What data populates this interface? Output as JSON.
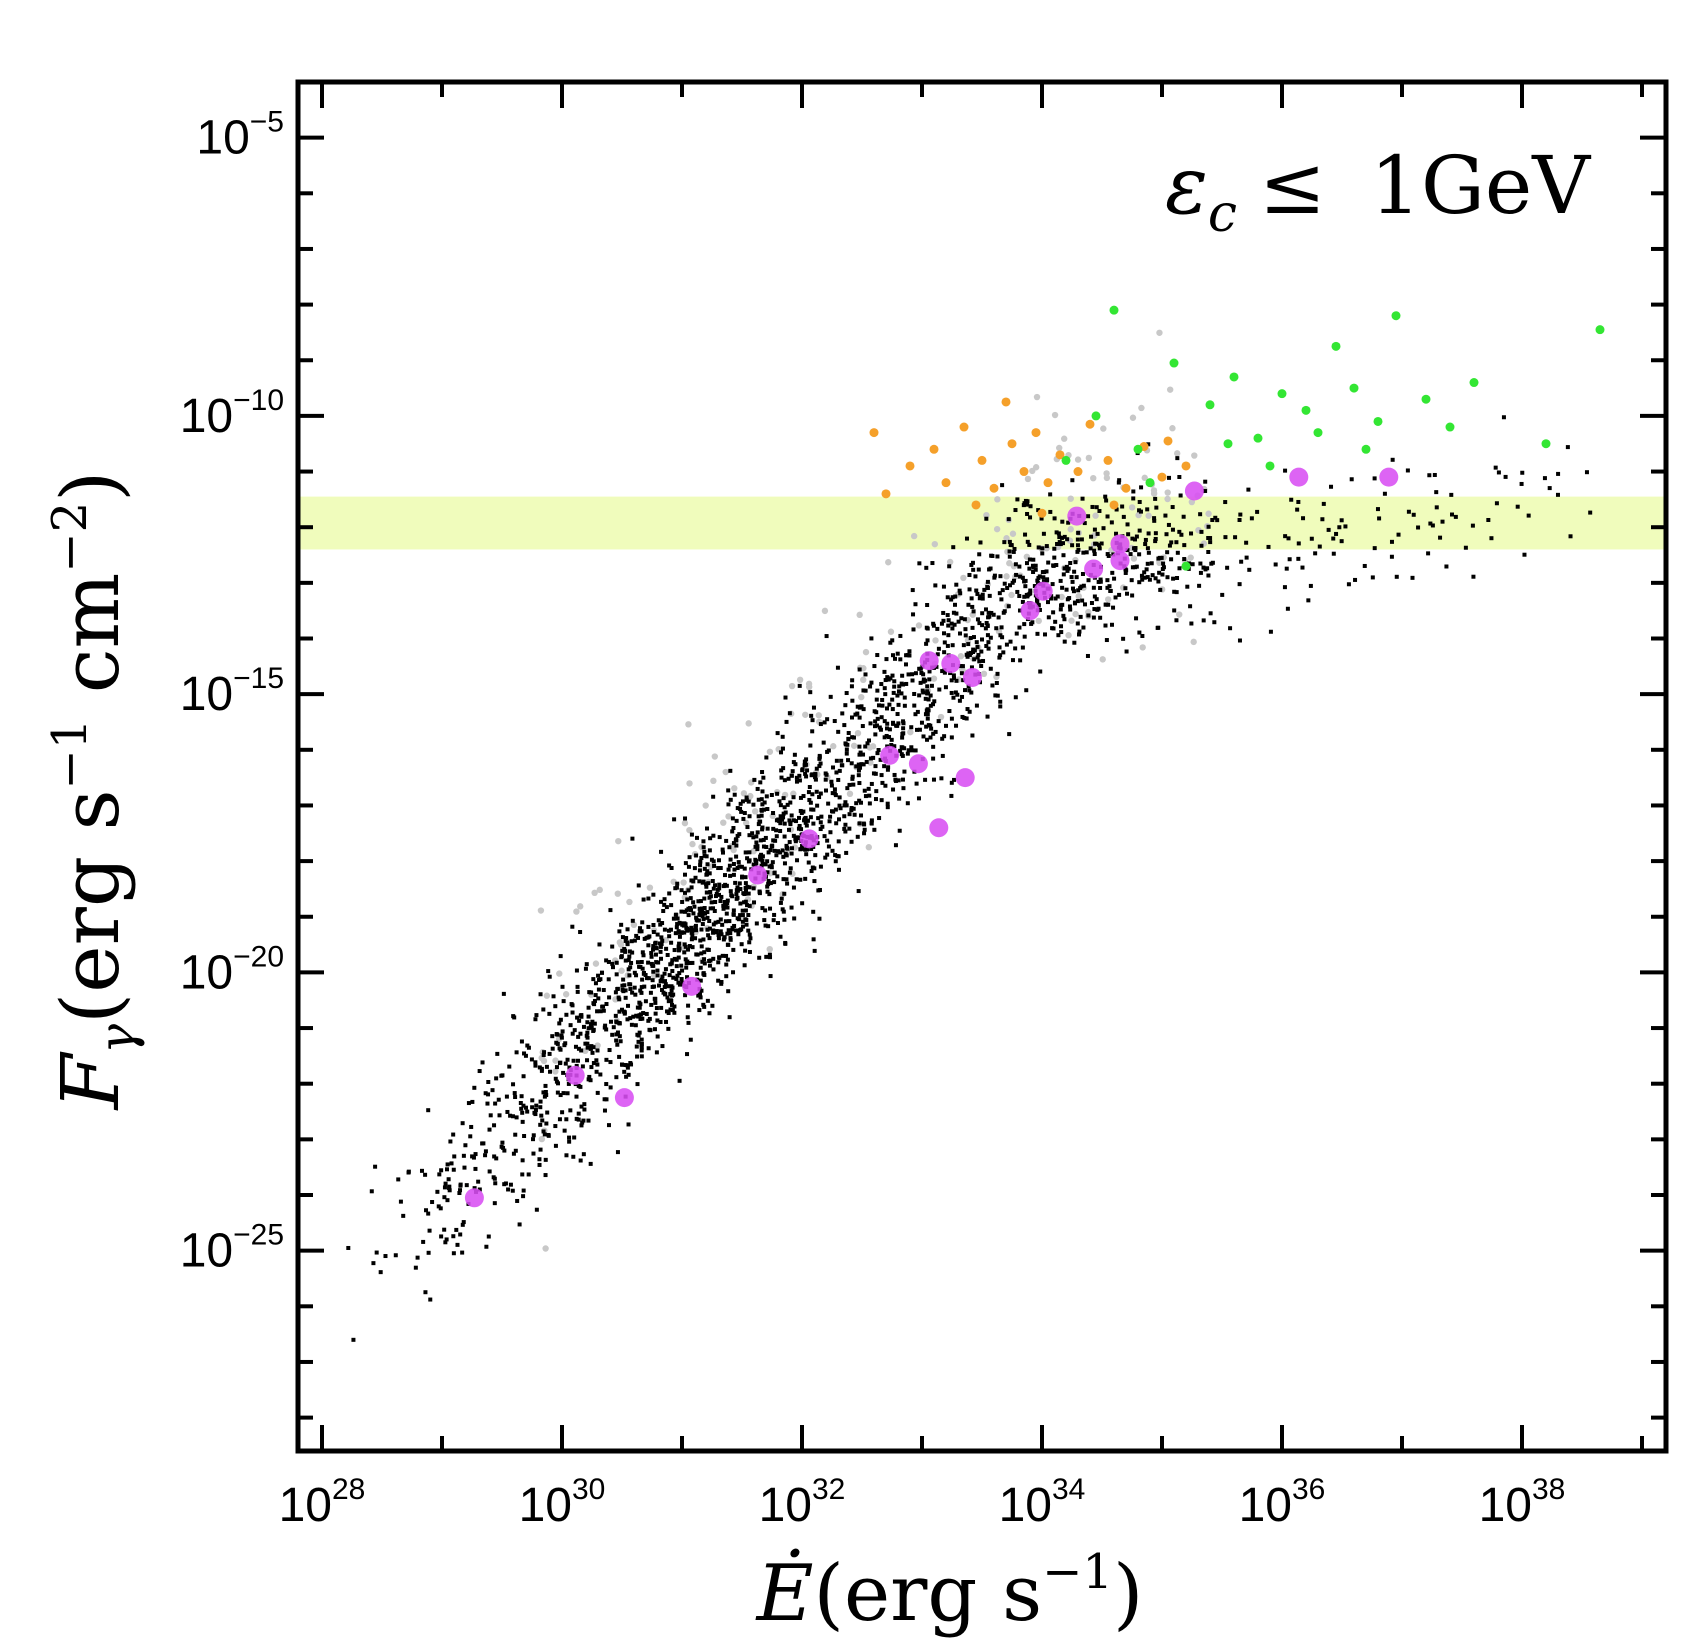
{
  "chart_data": {
    "type": "scatter",
    "title": "",
    "annotation": {
      "epsilon": "ε",
      "sub": "c",
      "relation": "≤",
      "value": "1GeV"
    },
    "xlabel": {
      "symbol": "Ė",
      "unit_open": "(erg s",
      "exp": "−1",
      "unit_close": ")"
    },
    "ylabel": {
      "symbol": "F",
      "sub": "γ",
      "unit_open": "(erg s",
      "exp1": "−1",
      "mid": " cm",
      "exp2": "−2",
      "unit_close": ")"
    },
    "x_scale": "log10",
    "y_scale": "log10",
    "xlim_log10": [
      27.8,
      39.2
    ],
    "ylim_log10": [
      -28.6,
      -4.0
    ],
    "x_ticks": [
      {
        "log": 28,
        "base": "10",
        "exp": "28"
      },
      {
        "log": 30,
        "base": "10",
        "exp": "30"
      },
      {
        "log": 32,
        "base": "10",
        "exp": "32"
      },
      {
        "log": 34,
        "base": "10",
        "exp": "34"
      },
      {
        "log": 36,
        "base": "10",
        "exp": "36"
      },
      {
        "log": 38,
        "base": "10",
        "exp": "38"
      }
    ],
    "y_ticks": [
      {
        "log": -5,
        "base": "10",
        "exp": "−5"
      },
      {
        "log": -10,
        "base": "10",
        "exp": "−10"
      },
      {
        "log": -15,
        "base": "10",
        "exp": "−15"
      },
      {
        "log": -20,
        "base": "10",
        "exp": "−20"
      },
      {
        "log": -25,
        "base": "10",
        "exp": "−25"
      }
    ],
    "band": {
      "label": "sensitivity band",
      "y_log_range": [
        -12.4,
        -11.45
      ],
      "color": "#f0fcbc"
    },
    "colors": {
      "black": "#000000",
      "gray": "#c8c8c8",
      "orange": "#f5a02a",
      "green": "#33e633",
      "magenta": "#d84ef2"
    },
    "series": [
      {
        "name": "magenta",
        "points": [
          [
            29.27,
            -24.05
          ],
          [
            30.11,
            -21.85
          ],
          [
            30.52,
            -22.25
          ],
          [
            31.08,
            -20.25
          ],
          [
            31.63,
            -18.25
          ],
          [
            32.06,
            -17.6
          ],
          [
            32.73,
            -16.1
          ],
          [
            32.97,
            -16.25
          ],
          [
            33.14,
            -17.4
          ],
          [
            33.36,
            -16.5
          ],
          [
            33.06,
            -14.4
          ],
          [
            33.24,
            -14.45
          ],
          [
            33.42,
            -14.7
          ],
          [
            33.9,
            -13.5
          ],
          [
            34.01,
            -13.15
          ],
          [
            34.29,
            -11.8
          ],
          [
            34.43,
            -12.75
          ],
          [
            34.65,
            -12.3
          ],
          [
            34.65,
            -12.6
          ],
          [
            35.27,
            -11.35
          ],
          [
            36.14,
            -11.1
          ],
          [
            36.89,
            -11.1
          ]
        ]
      },
      {
        "name": "green",
        "points": [
          [
            34.2,
            -10.8
          ],
          [
            34.6,
            -8.1
          ],
          [
            34.8,
            -10.6
          ],
          [
            35.1,
            -9.05
          ],
          [
            35.4,
            -9.8
          ],
          [
            35.6,
            -9.3
          ],
          [
            35.8,
            -10.4
          ],
          [
            36.0,
            -9.6
          ],
          [
            36.2,
            -9.9
          ],
          [
            36.45,
            -8.75
          ],
          [
            36.6,
            -9.5
          ],
          [
            36.8,
            -10.1
          ],
          [
            36.95,
            -8.2
          ],
          [
            37.2,
            -9.7
          ],
          [
            37.4,
            -10.2
          ],
          [
            37.6,
            -9.4
          ],
          [
            38.2,
            -10.5
          ],
          [
            38.65,
            -8.45
          ],
          [
            35.2,
            -12.7
          ],
          [
            34.9,
            -11.2
          ],
          [
            35.55,
            -10.5
          ],
          [
            35.9,
            -10.9
          ],
          [
            36.3,
            -10.3
          ],
          [
            36.7,
            -10.6
          ],
          [
            34.45,
            -10.0
          ]
        ]
      },
      {
        "name": "orange",
        "points": [
          [
            32.6,
            -10.3
          ],
          [
            32.7,
            -11.4
          ],
          [
            32.9,
            -10.9
          ],
          [
            33.1,
            -10.6
          ],
          [
            33.2,
            -11.2
          ],
          [
            33.35,
            -10.2
          ],
          [
            33.5,
            -10.8
          ],
          [
            33.6,
            -11.3
          ],
          [
            33.75,
            -10.5
          ],
          [
            33.85,
            -11.0
          ],
          [
            33.95,
            -10.3
          ],
          [
            34.05,
            -11.2
          ],
          [
            34.15,
            -10.7
          ],
          [
            34.3,
            -11.0
          ],
          [
            34.4,
            -10.15
          ],
          [
            34.55,
            -10.8
          ],
          [
            34.7,
            -11.3
          ],
          [
            34.85,
            -10.55
          ],
          [
            35.0,
            -11.1
          ],
          [
            35.2,
            -10.9
          ],
          [
            33.7,
            -9.75
          ],
          [
            33.45,
            -11.6
          ],
          [
            34.0,
            -11.75
          ],
          [
            34.6,
            -11.6
          ],
          [
            35.05,
            -10.45
          ]
        ]
      }
    ]
  }
}
